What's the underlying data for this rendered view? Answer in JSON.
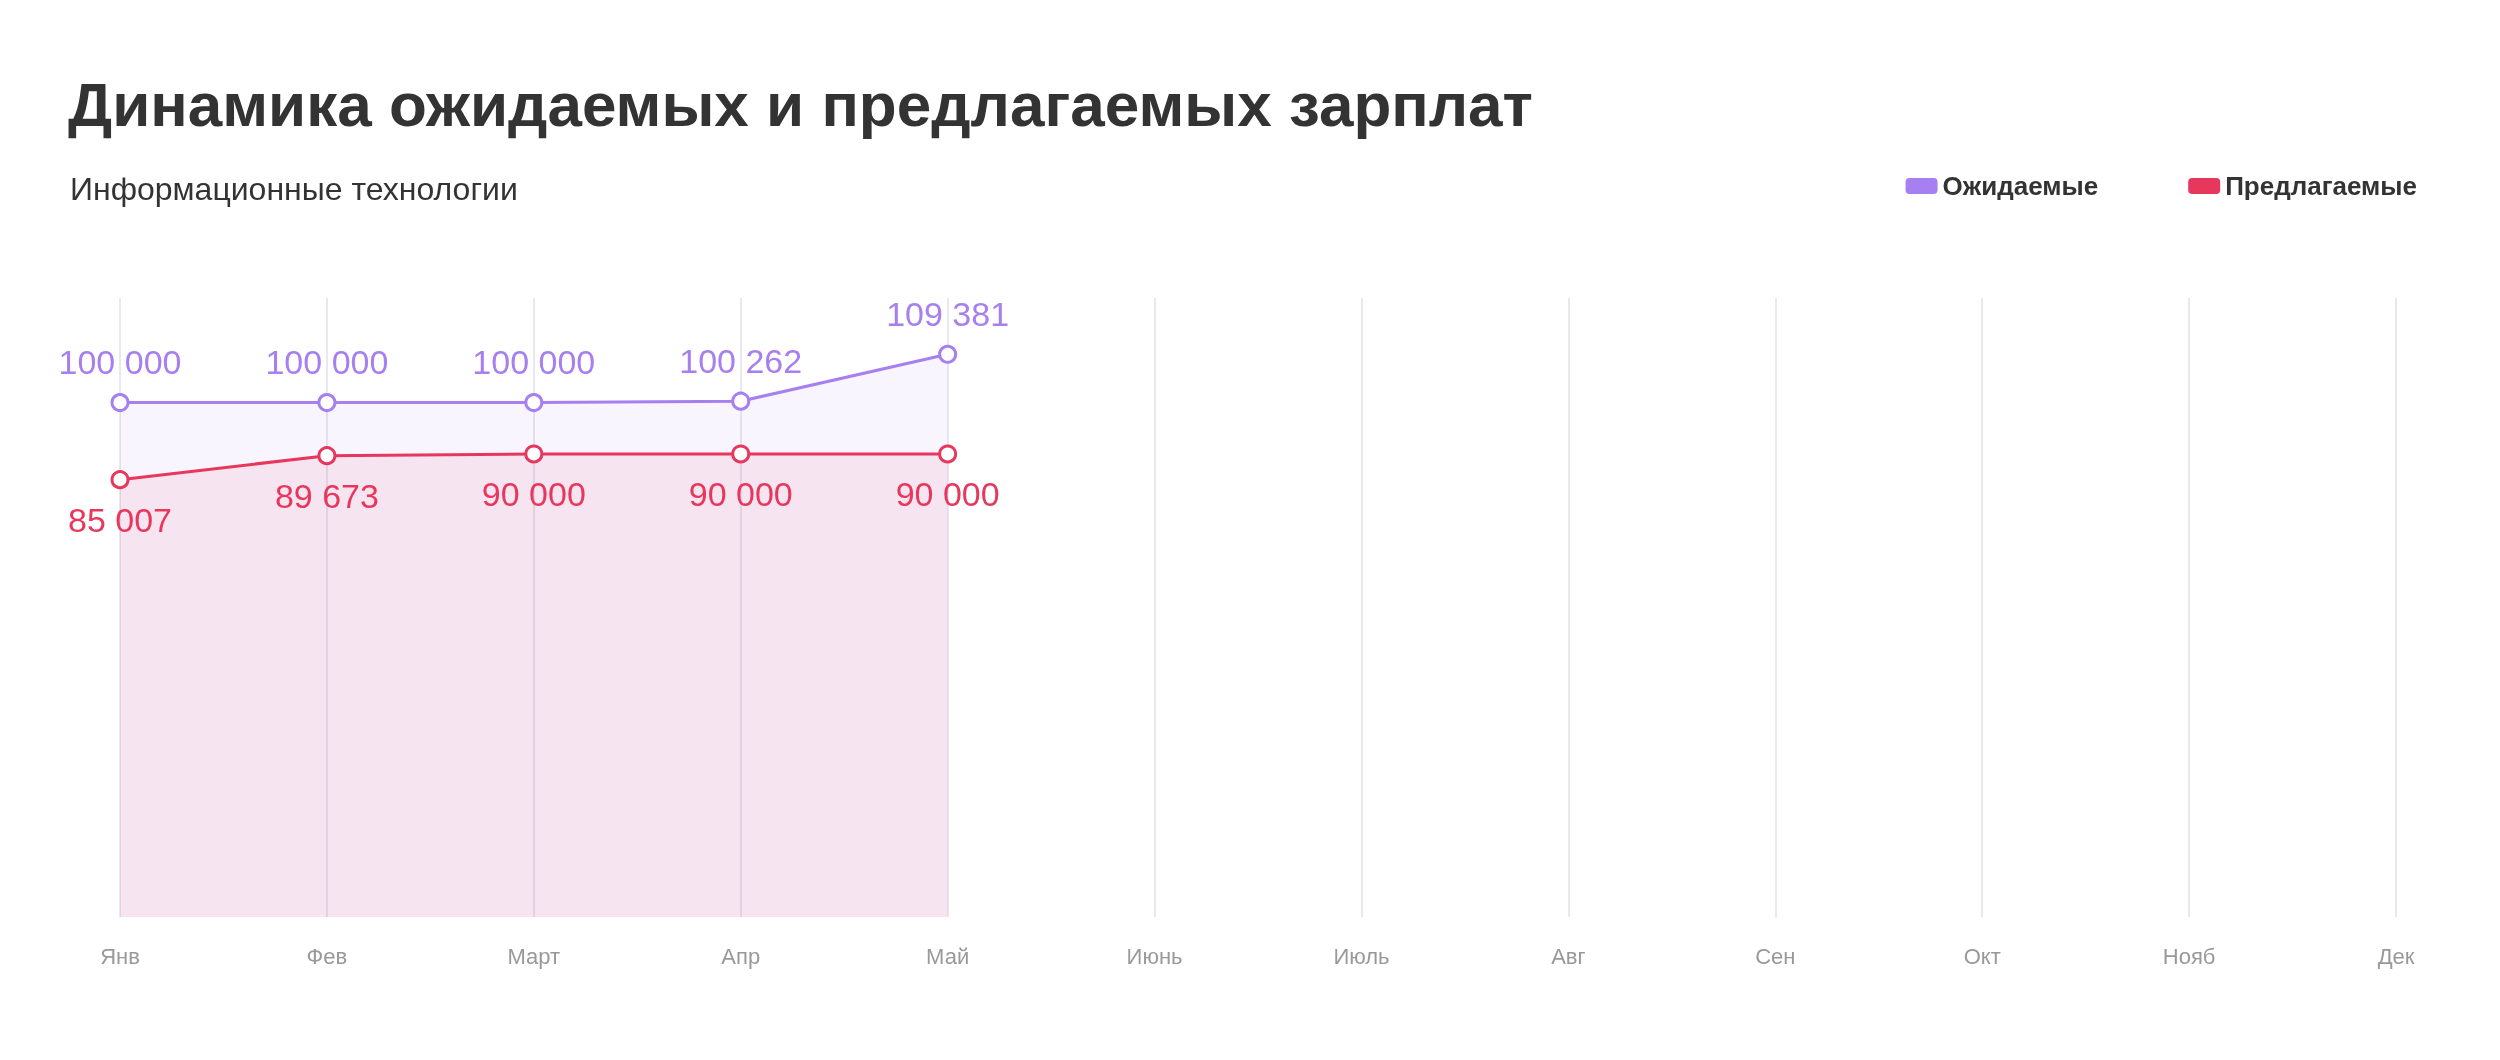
{
  "chart_data": {
    "type": "area",
    "title": "Динамика ожидаемых и предлагаемых зарплат",
    "subtitle": "Информационные технологии",
    "categories": [
      "Янв",
      "Фев",
      "Март",
      "Апр",
      "Май",
      "Июнь",
      "Июль",
      "Авг",
      "Сен",
      "Окт",
      "Нояб",
      "Дек"
    ],
    "series": [
      {
        "name": "Ожидаемые",
        "color": "#a67ff0",
        "values": [
          100000,
          100000,
          100000,
          100262,
          109381,
          null,
          null,
          null,
          null,
          null,
          null,
          null
        ]
      },
      {
        "name": "Предлагаемые",
        "color": "#e8375c",
        "values": [
          85007,
          89673,
          90000,
          90000,
          90000,
          null,
          null,
          null,
          null,
          null,
          null,
          null
        ]
      }
    ],
    "data_labels": true,
    "grid": "x",
    "legend": "top right",
    "marker": "circle"
  }
}
